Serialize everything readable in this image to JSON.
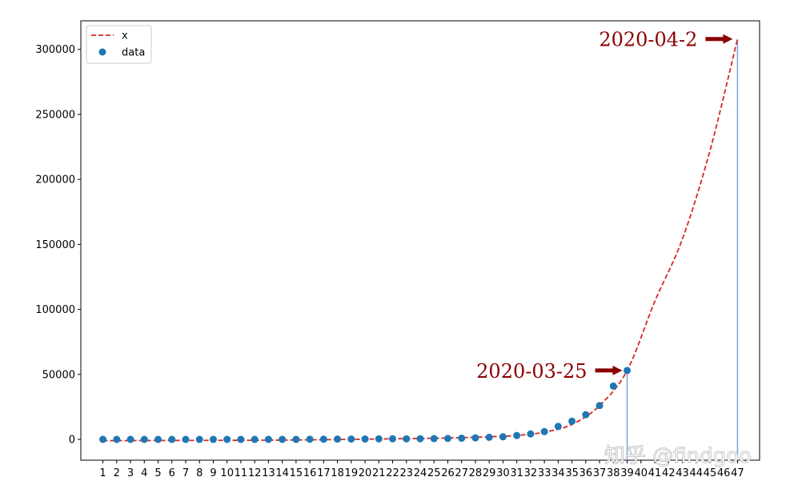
{
  "chart_data": {
    "type": "scatter",
    "x_categories": [
      "1",
      "2",
      "3",
      "4",
      "5",
      "6",
      "7",
      "8",
      "9",
      "10",
      "11",
      "12",
      "13",
      "14",
      "15",
      "16",
      "17",
      "18",
      "19",
      "20",
      "21",
      "22",
      "23",
      "24",
      "25",
      "26",
      "27",
      "28",
      "29",
      "30",
      "31",
      "32",
      "33",
      "34",
      "35",
      "36",
      "37",
      "38",
      "39",
      "40",
      "41",
      "42",
      "43",
      "44",
      "45",
      "46",
      "47"
    ],
    "series": [
      {
        "name": "data",
        "kind": "scatter",
        "color": "#1f77b4",
        "x": [
          1,
          2,
          3,
          4,
          5,
          6,
          7,
          8,
          9,
          10,
          11,
          12,
          13,
          14,
          15,
          16,
          17,
          18,
          19,
          20,
          21,
          22,
          23,
          24,
          25,
          26,
          27,
          28,
          29,
          30,
          31,
          32,
          33,
          34,
          35,
          36,
          37,
          38,
          39
        ],
        "y": [
          0,
          0,
          0,
          0,
          0,
          0,
          0,
          0,
          0,
          0,
          0,
          0,
          0,
          0,
          0,
          100,
          150,
          200,
          250,
          300,
          400,
          450,
          400,
          500,
          600,
          700,
          900,
          1200,
          1600,
          2000,
          3000,
          4200,
          6000,
          10000,
          14000,
          19000,
          26000,
          41000,
          53000
        ]
      },
      {
        "name": "x",
        "kind": "line",
        "style": "dashed",
        "color": "#d62728",
        "x": [
          1,
          3,
          5,
          7,
          9,
          11,
          13,
          15,
          17,
          19,
          21,
          23,
          25,
          27,
          29,
          31,
          33,
          35,
          37,
          39,
          41,
          43,
          45,
          47
        ],
        "y": [
          -1000,
          -900,
          -850,
          -800,
          -750,
          -700,
          -600,
          -450,
          -250,
          50,
          300,
          600,
          900,
          1350,
          2000,
          3000,
          5600,
          11500,
          26000,
          53000,
          106000,
          154000,
          222000,
          308000
        ]
      }
    ],
    "ylim": [
      -16000,
      322000
    ],
    "xlim": [
      -0.6,
      48.6
    ],
    "y_ticks": [
      0,
      50000,
      100000,
      150000,
      200000,
      250000,
      300000
    ],
    "y_tick_labels": [
      "0",
      "50000",
      "100000",
      "150000",
      "200000",
      "250000",
      "300000"
    ],
    "legend": {
      "position": "top-left",
      "entries": [
        {
          "label": "x",
          "marker": "dashed-line",
          "color": "#d62728"
        },
        {
          "label": "data",
          "marker": "dot",
          "color": "#1f77b4"
        }
      ]
    },
    "vlines": [
      {
        "x": 39,
        "y": 53000,
        "color": "#7b9ee6"
      },
      {
        "x": 47,
        "y": 308000,
        "color": "#7b9ee6"
      }
    ],
    "annotations": [
      {
        "text": "2020-03-25",
        "x": 39,
        "y": 53000,
        "color": "#8b0000",
        "side": "left"
      },
      {
        "text": "2020-04-2",
        "x": 47,
        "y": 308000,
        "color": "#8b0000",
        "side": "left"
      }
    ],
    "grid": false
  },
  "watermark": {
    "text": "知乎 @findgoo"
  }
}
